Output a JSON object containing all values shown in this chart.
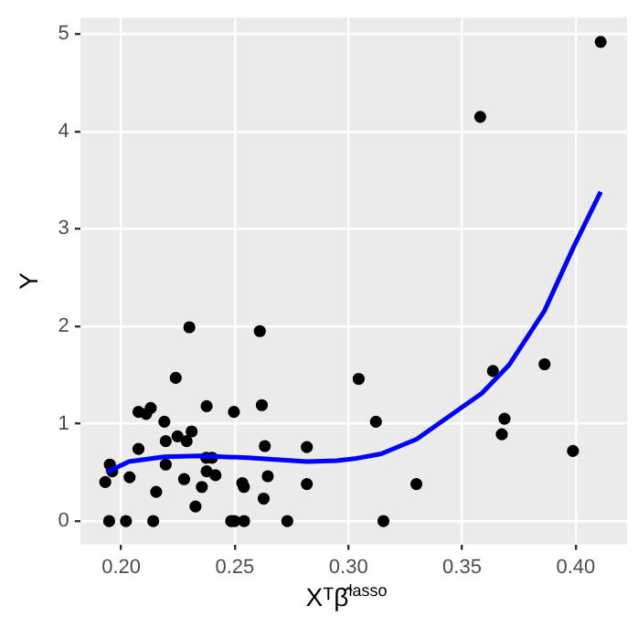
{
  "chart_data": {
    "type": "scatter",
    "xlabel": "Xᵀβ̂$^{lasso}$",
    "ylabel": "Y",
    "xlim": [
      0.182,
      0.4226
    ],
    "ylim": [
      -0.24,
      5.17
    ],
    "xticks": [
      {
        "value": 0.2,
        "label": "0.20"
      },
      0.25,
      {
        "value": 0.3,
        "label": "0.30"
      },
      0.35,
      {
        "value": 0.4,
        "label": "0.40"
      }
    ],
    "yticks": [
      0,
      1,
      2,
      3,
      4,
      5
    ],
    "grid": true,
    "legend": false,
    "marker": "circle",
    "series": [
      {
        "type": "scatter",
        "color": "#000000",
        "x": [
          0.23,
          0.261,
          0.224,
          0.3045,
          0.2076,
          0.211,
          0.213,
          0.2376,
          0.2496,
          0.2619,
          0.219,
          0.231,
          0.2248,
          0.2196,
          0.2288,
          0.2076,
          0.2632,
          0.2817,
          0.195,
          0.2196,
          0.2374,
          0.24,
          0.1961,
          0.193,
          0.2037,
          0.2277,
          0.2376,
          0.2415,
          0.2533,
          0.254,
          0.2645,
          0.2355,
          0.2154,
          0.2627,
          0.2817,
          0.2327,
          0.1947,
          0.2021,
          0.2141,
          0.2484,
          0.2499,
          0.2541,
          0.2731,
          0.3121,
          0.3154,
          0.3299,
          0.3636,
          0.3863,
          0.3687,
          0.3675,
          0.3988,
          0.358,
          0.411
        ],
        "values": [
          1.99,
          1.95,
          1.47,
          1.46,
          1.12,
          1.1,
          1.16,
          1.18,
          1.12,
          1.19,
          1.02,
          0.92,
          0.87,
          0.82,
          0.82,
          0.74,
          0.77,
          0.76,
          0.58,
          0.58,
          0.65,
          0.65,
          0.51,
          0.4,
          0.45,
          0.43,
          0.51,
          0.47,
          0.39,
          0.35,
          0.46,
          0.35,
          0.3,
          0.23,
          0.38,
          0.15,
          0,
          0,
          0,
          0,
          0,
          0,
          0,
          1.02,
          0,
          0.38,
          1.54,
          1.61,
          1.05,
          0.89,
          0.72,
          4.15,
          4.92
        ]
      },
      {
        "type": "line",
        "color": "#0000ff",
        "marker": "none",
        "x": [
          0.1935,
          0.2034,
          0.219,
          0.2347,
          0.2556,
          0.2817,
          0.2949,
          0.3027,
          0.3144,
          0.33,
          0.347,
          0.3586,
          0.3706,
          0.3863,
          0.399,
          0.411
        ],
        "values": [
          0.5,
          0.61,
          0.66,
          0.67,
          0.65,
          0.61,
          0.62,
          0.64,
          0.69,
          0.84,
          1.12,
          1.31,
          1.6,
          2.16,
          2.81,
          3.38
        ]
      }
    ]
  }
}
